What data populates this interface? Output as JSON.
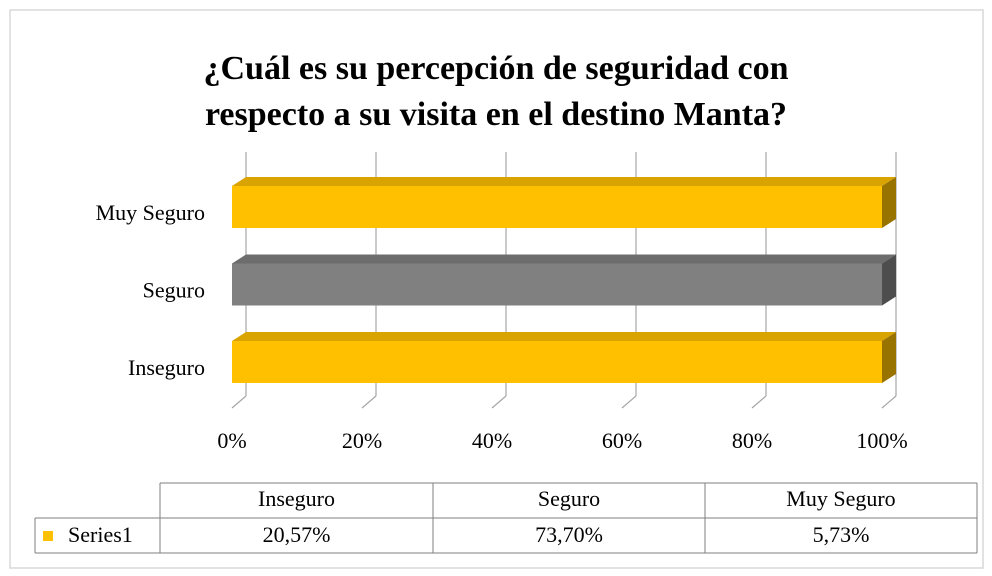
{
  "chart_data": {
    "type": "bar",
    "stacked": "percent",
    "title": "¿Cuál es su percepción de seguridad con respecto a su visita en el destino Manta?",
    "categories": [
      "Inseguro",
      "Seguro",
      "Muy Seguro"
    ],
    "series": [
      {
        "name": "Series1",
        "color": "#FFC000",
        "colors": [
          "#FFC000",
          "#808080",
          "#FFC000"
        ],
        "values": [
          20.57,
          73.7,
          5.73
        ],
        "value_labels": [
          "20,57%",
          "73,70%",
          "5,73%"
        ]
      }
    ],
    "xlim": [
      0,
      100
    ],
    "xticks": [
      {
        "value": 0,
        "label": "0%"
      },
      {
        "value": 20,
        "label": "20%"
      },
      {
        "value": 40,
        "label": "40%"
      },
      {
        "value": 60,
        "label": "60%"
      },
      {
        "value": 80,
        "label": "80%"
      },
      {
        "value": 100,
        "label": "100%"
      }
    ],
    "grid": true,
    "data_table": true
  }
}
